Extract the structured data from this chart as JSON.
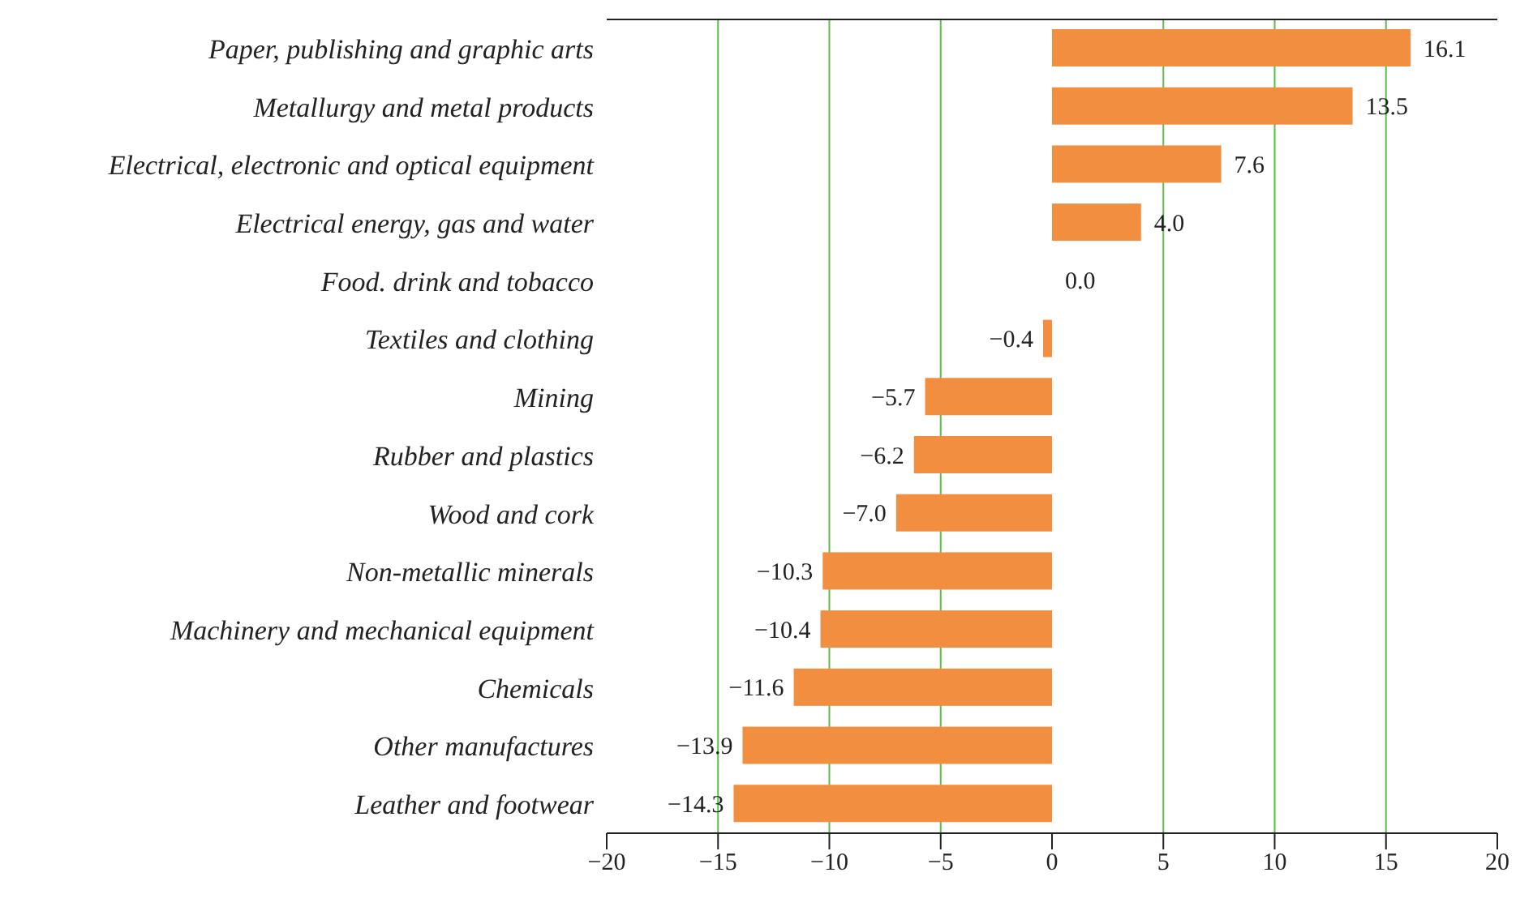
{
  "chart_data": {
    "type": "bar",
    "orientation": "horizontal",
    "categories": [
      "Paper, publishing and graphic arts",
      "Metallurgy and metal products",
      "Electrical, electronic and optical equipment",
      "Electrical energy, gas and water",
      "Food. drink and tobacco",
      "Textiles and clothing",
      "Mining",
      "Rubber and plastics",
      "Wood and cork",
      "Non-metallic minerals",
      "Machinery and mechanical equipment",
      "Chemicals",
      "Other manufactures",
      "Leather and footwear"
    ],
    "values": [
      16.1,
      13.5,
      7.6,
      4.0,
      0.0,
      -0.4,
      -5.7,
      -6.2,
      -7.0,
      -10.3,
      -10.4,
      -11.6,
      -13.9,
      -14.3
    ],
    "value_labels": [
      "16.1",
      "13.5",
      "7.6",
      "4.0",
      "0.0",
      "−0.4",
      "−5.7",
      "−6.2",
      "−7.0",
      "−10.3",
      "−10.4",
      "−11.6",
      "−13.9",
      "−14.3"
    ],
    "color": "#f28e3f",
    "xlim": [
      -20,
      20
    ],
    "xticks": [
      {
        "value": -20,
        "label": "−20"
      },
      {
        "value": -15,
        "label": "−15"
      },
      {
        "value": -10,
        "label": "−10"
      },
      {
        "value": -5,
        "label": "−5"
      },
      0,
      5,
      10,
      15,
      20
    ],
    "grid": "x",
    "legend": false
  }
}
